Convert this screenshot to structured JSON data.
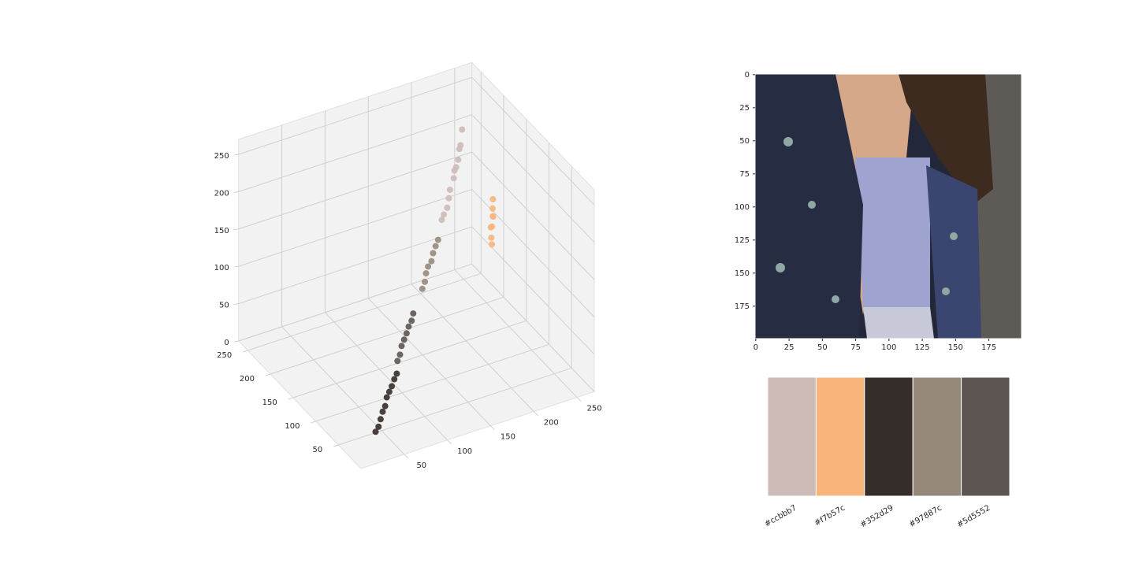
{
  "chart_data": [
    {
      "type": "scatter3d",
      "xlim": [
        0,
        270
      ],
      "ylim": [
        0,
        270
      ],
      "zlim": [
        0,
        270
      ],
      "xticks": [
        50,
        100,
        150,
        200,
        250
      ],
      "yticks": [
        50,
        100,
        150,
        200,
        250
      ],
      "zticks": [
        0,
        50,
        100,
        150,
        200,
        250
      ],
      "series": [
        {
          "color": "#ccbbb7",
          "x": [
            180,
            200,
            215,
            225,
            235,
            190,
            208,
            220,
            195,
            212,
            228,
            185
          ],
          "y": [
            165,
            185,
            200,
            212,
            225,
            172,
            192,
            205,
            178,
            198,
            215,
            170
          ],
          "z": [
            160,
            180,
            195,
            208,
            222,
            168,
            188,
            200,
            175,
            193,
            210,
            162
          ]
        },
        {
          "color": "#f7b57c",
          "x": [
            240,
            250,
            245,
            255,
            238,
            252,
            242,
            248
          ],
          "y": [
            170,
            185,
            178,
            195,
            165,
            190,
            175,
            182
          ],
          "z": [
            110,
            125,
            118,
            140,
            105,
            132,
            120,
            128
          ]
        },
        {
          "color": "#352d29",
          "x": [
            30,
            40,
            50,
            60,
            70,
            45,
            35,
            65,
            55,
            75
          ],
          "y": [
            25,
            33,
            42,
            52,
            60,
            38,
            28,
            56,
            48,
            64
          ],
          "z": [
            22,
            30,
            38,
            47,
            55,
            35,
            25,
            50,
            44,
            58
          ]
        },
        {
          "color": "#97887c",
          "x": [
            135,
            145,
            155,
            165,
            150,
            140,
            160,
            170
          ],
          "y": [
            122,
            133,
            140,
            150,
            138,
            126,
            146,
            154
          ],
          "z": [
            112,
            122,
            130,
            140,
            126,
            117,
            135,
            144
          ]
        },
        {
          "color": "#5d5552",
          "x": [
            80,
            90,
            100,
            110,
            95,
            85,
            105,
            115
          ],
          "y": [
            72,
            82,
            90,
            98,
            86,
            76,
            95,
            104
          ],
          "z": [
            68,
            78,
            86,
            94,
            82,
            72,
            90,
            98
          ]
        }
      ]
    },
    {
      "type": "image",
      "xlim": [
        -0.5,
        199.5
      ],
      "ylim": [
        199.5,
        -0.5
      ],
      "xticks": [
        0,
        25,
        50,
        75,
        100,
        125,
        150,
        175
      ],
      "yticks": [
        0,
        25,
        50,
        75,
        100,
        125,
        150,
        175
      ]
    },
    {
      "type": "palette",
      "categories": [
        "#ccbbb7",
        "#f7b57c",
        "#352d29",
        "#97887c",
        "#5d5552"
      ],
      "colors": [
        "#ccbbb7",
        "#f7b57c",
        "#352d29",
        "#97887c",
        "#5d5552"
      ]
    }
  ]
}
